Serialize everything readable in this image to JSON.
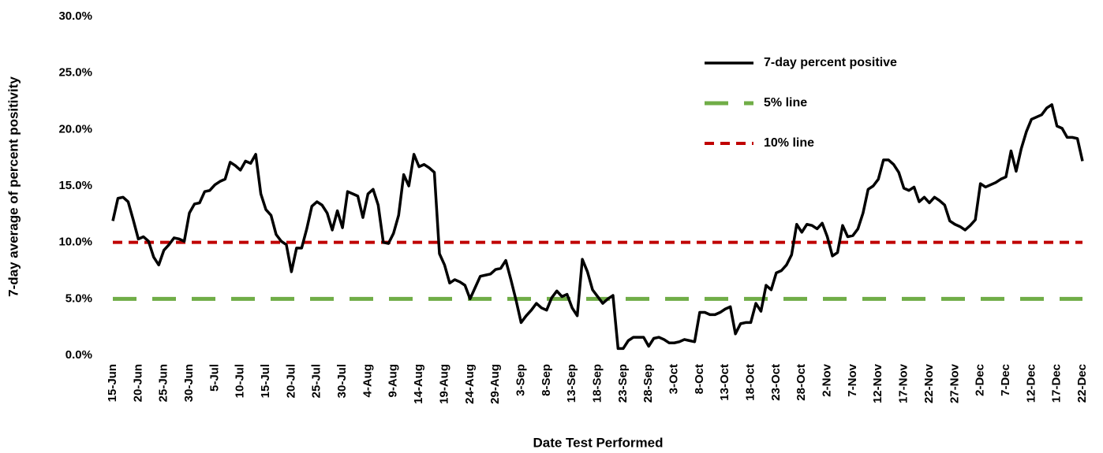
{
  "chart_data": {
    "type": "line",
    "x_label": "Date Test Performed",
    "y_label": "7-day average of percent positivity",
    "categories": [
      "15-Jun",
      null,
      null,
      null,
      null,
      "20-Jun",
      null,
      null,
      null,
      null,
      "25-Jun",
      null,
      null,
      null,
      null,
      "30-Jun",
      null,
      null,
      null,
      null,
      "5-Jul",
      null,
      null,
      null,
      null,
      "10-Jul",
      null,
      null,
      null,
      null,
      "15-Jul",
      null,
      null,
      null,
      null,
      "20-Jul",
      null,
      null,
      null,
      null,
      "25-Jul",
      null,
      null,
      null,
      null,
      "30-Jul",
      null,
      null,
      null,
      null,
      "4-Aug",
      null,
      null,
      null,
      null,
      "9-Aug",
      null,
      null,
      null,
      null,
      "14-Aug",
      null,
      null,
      null,
      null,
      "19-Aug",
      null,
      null,
      null,
      null,
      "24-Aug",
      null,
      null,
      null,
      null,
      "29-Aug",
      null,
      null,
      null,
      null,
      "3-Sep",
      null,
      null,
      null,
      null,
      "8-Sep",
      null,
      null,
      null,
      null,
      "13-Sep",
      null,
      null,
      null,
      null,
      "18-Sep",
      null,
      null,
      null,
      null,
      "23-Sep",
      null,
      null,
      null,
      null,
      "28-Sep",
      null,
      null,
      null,
      null,
      "3-Oct",
      null,
      null,
      null,
      null,
      "8-Oct",
      null,
      null,
      null,
      null,
      "13-Oct",
      null,
      null,
      null,
      null,
      "18-Oct",
      null,
      null,
      null,
      null,
      "23-Oct",
      null,
      null,
      null,
      null,
      "28-Oct",
      null,
      null,
      null,
      null,
      "2-Nov",
      null,
      null,
      null,
      null,
      "7-Nov",
      null,
      null,
      null,
      null,
      "12-Nov",
      null,
      null,
      null,
      null,
      "17-Nov",
      null,
      null,
      null,
      null,
      "22-Nov",
      null,
      null,
      null,
      null,
      "27-Nov",
      null,
      null,
      null,
      null,
      "2-Dec",
      null,
      null,
      null,
      null,
      "7-Dec",
      null,
      null,
      null,
      null,
      "12-Dec",
      null,
      null,
      null,
      null,
      "17-Dec",
      null,
      null,
      null,
      null,
      "22-Dec"
    ],
    "series": [
      {
        "name": "7-day percent positive",
        "color": "#000000",
        "style": "solid",
        "values": [
          11.9,
          13.9,
          14.0,
          13.6,
          12.0,
          10.3,
          10.5,
          10.1,
          8.7,
          8.0,
          9.3,
          9.8,
          10.4,
          10.3,
          10.1,
          12.6,
          13.4,
          13.5,
          14.5,
          14.6,
          15.1,
          15.4,
          15.6,
          17.1,
          16.8,
          16.4,
          17.2,
          17.0,
          17.8,
          14.3,
          12.9,
          12.4,
          10.7,
          10.1,
          9.8,
          7.4,
          9.5,
          9.5,
          11.2,
          13.2,
          13.6,
          13.3,
          12.6,
          11.1,
          12.8,
          11.3,
          14.5,
          14.3,
          14.1,
          12.2,
          14.3,
          14.7,
          13.3,
          10.0,
          9.9,
          10.8,
          12.4,
          16.0,
          15.0,
          17.8,
          16.7,
          16.9,
          16.6,
          16.2,
          9.0,
          8.0,
          6.4,
          6.7,
          6.5,
          6.2,
          5.0,
          6.0,
          7.0,
          7.1,
          7.2,
          7.6,
          7.7,
          8.4,
          6.7,
          4.9,
          2.9,
          3.5,
          4.0,
          4.6,
          4.2,
          4.0,
          5.1,
          5.7,
          5.2,
          5.4,
          4.2,
          3.5,
          8.5,
          7.4,
          5.8,
          5.2,
          4.6,
          5.0,
          5.3,
          0.6,
          0.6,
          1.3,
          1.6,
          1.6,
          1.6,
          0.8,
          1.5,
          1.6,
          1.4,
          1.1,
          1.1,
          1.2,
          1.4,
          1.3,
          1.2,
          3.8,
          3.8,
          3.6,
          3.6,
          3.8,
          4.1,
          4.3,
          1.9,
          2.8,
          2.9,
          2.9,
          4.6,
          3.9,
          6.2,
          5.8,
          7.3,
          7.5,
          8.0,
          8.9,
          11.6,
          10.9,
          11.6,
          11.5,
          11.2,
          11.7,
          10.5,
          8.8,
          9.1,
          11.5,
          10.5,
          10.6,
          11.2,
          12.6,
          14.7,
          15.0,
          15.6,
          17.3,
          17.3,
          16.9,
          16.2,
          14.8,
          14.6,
          14.9,
          13.6,
          14.0,
          13.5,
          14.0,
          13.7,
          13.3,
          11.9,
          11.6,
          11.4,
          11.1,
          11.5,
          12.0,
          15.2,
          14.9,
          15.1,
          15.3,
          15.6,
          15.8,
          18.1,
          16.3,
          18.3,
          19.8,
          20.9,
          21.1,
          21.3,
          21.9,
          22.2,
          20.3,
          20.1,
          19.3,
          19.3,
          19.2,
          17.2
        ]
      },
      {
        "name": "5% line",
        "color": "#70ad47",
        "style": "long-dash",
        "values": [
          5,
          5,
          5,
          5,
          5,
          5,
          5,
          5,
          5,
          5,
          5,
          5,
          5,
          5,
          5,
          5,
          5,
          5,
          5,
          5,
          5,
          5,
          5,
          5,
          5,
          5,
          5,
          5,
          5,
          5,
          5,
          5,
          5,
          5,
          5,
          5,
          5,
          5,
          5,
          5,
          5,
          5,
          5,
          5,
          5,
          5,
          5,
          5,
          5,
          5,
          5,
          5,
          5,
          5,
          5,
          5,
          5,
          5,
          5,
          5,
          5,
          5,
          5,
          5,
          5,
          5,
          5,
          5,
          5,
          5,
          5,
          5,
          5,
          5,
          5,
          5,
          5,
          5,
          5,
          5,
          5,
          5,
          5,
          5,
          5,
          5,
          5,
          5,
          5,
          5,
          5,
          5,
          5,
          5,
          5,
          5,
          5,
          5,
          5,
          5,
          5,
          5,
          5,
          5,
          5,
          5,
          5,
          5,
          5,
          5,
          5,
          5,
          5,
          5,
          5,
          5,
          5,
          5,
          5,
          5,
          5,
          5,
          5,
          5,
          5,
          5,
          5,
          5,
          5,
          5,
          5,
          5,
          5,
          5,
          5,
          5,
          5,
          5,
          5,
          5,
          5,
          5,
          5,
          5,
          5,
          5,
          5,
          5,
          5,
          5,
          5,
          5,
          5,
          5,
          5,
          5,
          5,
          5,
          5,
          5,
          5,
          5,
          5,
          5,
          5,
          5,
          5,
          5,
          5,
          5,
          5,
          5,
          5,
          5,
          5,
          5,
          5,
          5,
          5,
          5,
          5,
          5,
          5,
          5,
          5,
          5,
          5,
          5,
          5,
          5,
          5
        ]
      },
      {
        "name": "10% line",
        "color": "#c00000",
        "style": "dash",
        "values": [
          10,
          10,
          10,
          10,
          10,
          10,
          10,
          10,
          10,
          10,
          10,
          10,
          10,
          10,
          10,
          10,
          10,
          10,
          10,
          10,
          10,
          10,
          10,
          10,
          10,
          10,
          10,
          10,
          10,
          10,
          10,
          10,
          10,
          10,
          10,
          10,
          10,
          10,
          10,
          10,
          10,
          10,
          10,
          10,
          10,
          10,
          10,
          10,
          10,
          10,
          10,
          10,
          10,
          10,
          10,
          10,
          10,
          10,
          10,
          10,
          10,
          10,
          10,
          10,
          10,
          10,
          10,
          10,
          10,
          10,
          10,
          10,
          10,
          10,
          10,
          10,
          10,
          10,
          10,
          10,
          10,
          10,
          10,
          10,
          10,
          10,
          10,
          10,
          10,
          10,
          10,
          10,
          10,
          10,
          10,
          10,
          10,
          10,
          10,
          10,
          10,
          10,
          10,
          10,
          10,
          10,
          10,
          10,
          10,
          10,
          10,
          10,
          10,
          10,
          10,
          10,
          10,
          10,
          10,
          10,
          10,
          10,
          10,
          10,
          10,
          10,
          10,
          10,
          10,
          10,
          10,
          10,
          10,
          10,
          10,
          10,
          10,
          10,
          10,
          10,
          10,
          10,
          10,
          10,
          10,
          10,
          10,
          10,
          10,
          10,
          10,
          10,
          10,
          10,
          10,
          10,
          10,
          10,
          10,
          10,
          10,
          10,
          10,
          10,
          10,
          10,
          10,
          10,
          10,
          10,
          10,
          10,
          10,
          10,
          10,
          10,
          10,
          10,
          10,
          10,
          10,
          10,
          10,
          10,
          10,
          10,
          10,
          10,
          10,
          10,
          10
        ]
      }
    ],
    "ylim": [
      0,
      30
    ],
    "yticks": [
      {
        "value": 0,
        "label": "0.0%"
      },
      {
        "value": 5,
        "label": "5.0%"
      },
      {
        "value": 10,
        "label": "10.0%"
      },
      {
        "value": 15,
        "label": "15.0%"
      },
      {
        "value": 20,
        "label": "20.0%"
      },
      {
        "value": 25,
        "label": "25.0%"
      },
      {
        "value": 30,
        "label": "30.0%"
      }
    ],
    "grid": false,
    "legend": "upper-right"
  }
}
